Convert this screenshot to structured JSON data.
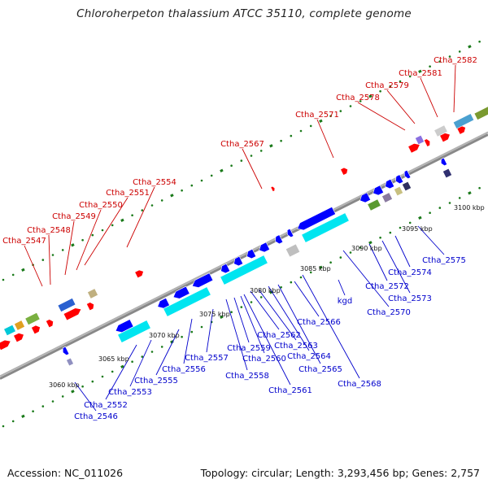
{
  "title": "Chloroherpeton thalassium ATCC 35110, complete genome",
  "footer": {
    "accession": "Accession: NC_011026",
    "stats": "Topology: circular; Length: 3,293,456 bp; Genes: 2,757"
  },
  "colors": {
    "forward_label": "#cc0000",
    "reverse_label": "#0000cc",
    "backbone": "#888888",
    "tick": "#1a7a1a",
    "forward_gene": "#ff0000",
    "reverse_gene": "#0000ff",
    "rna_gene": "#00e5f0"
  },
  "scale_labels": [
    "3060 kbp",
    "3065 kbp",
    "3070 kbp",
    "3075 kbp",
    "3080 kbp",
    "3085 kbp",
    "3090 kbp",
    "3095 kbp",
    "3100 kbp"
  ],
  "forward_labels": [
    "Ctha_2547",
    "Ctha_2548",
    "Ctha_2549",
    "Ctha_2550",
    "Ctha_2551",
    "Ctha_2554",
    "Ctha_2567",
    "Ctha_2571",
    "Ctha_2578",
    "Ctha_2579",
    "Ctha_2581",
    "Ctha_2582"
  ],
  "reverse_labels": [
    "Ctha_2546",
    "Ctha_2552",
    "Ctha_2553",
    "Ctha_2555",
    "Ctha_2556",
    "Ctha_2557",
    "Ctha_2558",
    "Ctha_2559",
    "Ctha_2560",
    "Ctha_2561",
    "Ctha_2562",
    "Ctha_2563",
    "Ctha_2564",
    "Ctha_2565",
    "Ctha_2566",
    "Ctha_2568",
    "kgd",
    "Ctha_2570",
    "Ctha_2572",
    "Ctha_2573",
    "Ctha_2574",
    "Ctha_2575"
  ]
}
